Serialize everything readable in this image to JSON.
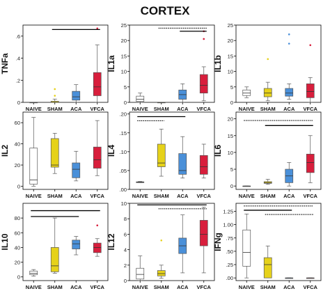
{
  "figure_title": "CORTEX",
  "chart_data": [
    {
      "type": "boxplot",
      "ylabel": "TNFa",
      "categories": [
        "NAIVE",
        "SHAM",
        "ACA",
        "VFCA"
      ],
      "ylim": [
        0,
        0.7
      ],
      "yticks": [
        0,
        0.2,
        0.4,
        0.6
      ],
      "ytick_labels": [
        "0",
        ".2",
        ".4",
        ".6"
      ],
      "colors": [
        "#ffffff",
        "#e6d21a",
        "#4a90d9",
        "#d81e3c"
      ],
      "boxes": [
        {
          "min": 0,
          "q1": 0,
          "median": 0,
          "q3": 0,
          "max": 0,
          "outliers": []
        },
        {
          "min": 0,
          "q1": 0,
          "median": 0,
          "q3": 0.01,
          "max": 0.03,
          "outliers": [
            0.06,
            0.12
          ]
        },
        {
          "min": 0,
          "q1": 0.02,
          "median": 0.05,
          "q3": 0.1,
          "max": 0.16,
          "outliers": []
        },
        {
          "min": 0,
          "q1": 0.06,
          "median": 0.14,
          "q3": 0.27,
          "max": 0.52,
          "outliers": [
            0.67
          ]
        }
      ],
      "significance_bars": [
        {
          "from": 1,
          "to": 3,
          "y": 0.66,
          "style": "solid"
        }
      ]
    },
    {
      "type": "boxplot",
      "ylabel": "IL1a",
      "categories": [
        "NAIVE",
        "SHAM",
        "ACA",
        "VFCA"
      ],
      "ylim": [
        0,
        25
      ],
      "yticks": [
        0,
        5,
        10,
        15,
        20,
        25
      ],
      "ytick_labels": [
        "0",
        "5",
        "10",
        "15",
        "20",
        "25"
      ],
      "colors": [
        "#ffffff",
        "#e6d21a",
        "#4a90d9",
        "#d81e3c"
      ],
      "boxes": [
        {
          "min": 0,
          "q1": 0.3,
          "median": 1.0,
          "q3": 2.0,
          "max": 3.0,
          "outliers": []
        },
        {
          "min": 0,
          "q1": 0,
          "median": 0,
          "q3": 0,
          "max": 0,
          "outliers": []
        },
        {
          "min": 0,
          "q1": 1.0,
          "median": 2.5,
          "q3": 4.0,
          "max": 6.0,
          "outliers": []
        },
        {
          "min": 0.5,
          "q1": 3.0,
          "median": 5.5,
          "q3": 9.0,
          "max": 11.5,
          "outliers": [
            20.5,
            23.0
          ]
        }
      ],
      "significance_bars": [
        {
          "from": 1,
          "to": 3,
          "y": 24.0,
          "style": "dotted"
        },
        {
          "from": 2,
          "to": 3,
          "y": 23.0,
          "style": "solid"
        }
      ]
    },
    {
      "type": "boxplot",
      "ylabel": "IL1b",
      "categories": [
        "NAIVE",
        "SHAM",
        "ACA",
        "VFCA"
      ],
      "ylim": [
        0,
        25
      ],
      "yticks": [
        0,
        5,
        10,
        15,
        20,
        25
      ],
      "ytick_labels": [
        "0",
        "5",
        "10",
        "15",
        "20",
        "25"
      ],
      "colors": [
        "#ffffff",
        "#e6d21a",
        "#4a90d9",
        "#d81e3c"
      ],
      "boxes": [
        {
          "min": 1.5,
          "q1": 2.2,
          "median": 3.0,
          "q3": 4.0,
          "max": 5.0,
          "outliers": []
        },
        {
          "min": 0.5,
          "q1": 1.8,
          "median": 3.0,
          "q3": 4.5,
          "max": 6.5,
          "outliers": [
            14.0
          ]
        },
        {
          "min": 1.0,
          "q1": 2.0,
          "median": 3.0,
          "q3": 4.5,
          "max": 6.0,
          "outliers": [
            19.0,
            22.0
          ]
        },
        {
          "min": 0,
          "q1": 1.5,
          "median": 3.5,
          "q3": 6.0,
          "max": 8.0,
          "outliers": [
            18.5
          ]
        }
      ],
      "significance_bars": []
    },
    {
      "type": "boxplot",
      "ylabel": "IL2",
      "categories": [
        "NAIVE",
        "SHAM",
        "ACA",
        "VFCA"
      ],
      "ylim": [
        -3,
        70
      ],
      "yticks": [
        0,
        20,
        40,
        60
      ],
      "ytick_labels": [
        "0",
        "20",
        "40",
        "60"
      ],
      "colors": [
        "#ffffff",
        "#e6d21a",
        "#4a90d9",
        "#d81e3c"
      ],
      "boxes": [
        {
          "min": 0,
          "q1": 2,
          "median": 6,
          "q3": 36,
          "max": 65,
          "outliers": []
        },
        {
          "min": 12,
          "q1": 18,
          "median": 20,
          "q3": 45,
          "max": 50,
          "outliers": []
        },
        {
          "min": 5,
          "q1": 8,
          "median": 16,
          "q3": 22,
          "max": 33,
          "outliers": []
        },
        {
          "min": 10,
          "q1": 17,
          "median": 25,
          "q3": 37,
          "max": 62,
          "outliers": []
        }
      ],
      "significance_bars": []
    },
    {
      "type": "boxplot",
      "ylabel": "IL4",
      "categories": [
        "NAIVE",
        "SHAM",
        "ACA",
        "VFCA"
      ],
      "ylim": [
        0,
        0.205
      ],
      "yticks": [
        0,
        0.05,
        0.1,
        0.15,
        0.2
      ],
      "ytick_labels": [
        ".00",
        ".05",
        ".10",
        ".15",
        ".20"
      ],
      "colors": [
        "#ffffff",
        "#e6d21a",
        "#4a90d9",
        "#d81e3c"
      ],
      "boxes": [
        {
          "min": 0.018,
          "q1": 0.018,
          "median": 0.019,
          "q3": 0.02,
          "max": 0.021,
          "outliers": []
        },
        {
          "min": 0.035,
          "q1": 0.06,
          "median": 0.07,
          "q3": 0.12,
          "max": 0.16,
          "outliers": []
        },
        {
          "min": 0.03,
          "q1": 0.04,
          "median": 0.05,
          "q3": 0.095,
          "max": 0.14,
          "outliers": []
        },
        {
          "min": 0.03,
          "q1": 0.04,
          "median": 0.06,
          "q3": 0.09,
          "max": 0.12,
          "outliers": []
        }
      ],
      "significance_bars": [
        {
          "from": 0,
          "to": 2,
          "y": 0.193,
          "style": "solid"
        },
        {
          "from": 0,
          "to": 1,
          "y": 0.182,
          "style": "dotted"
        }
      ]
    },
    {
      "type": "boxplot",
      "ylabel": "IL6",
      "categories": [
        "NAIVE",
        "SHAM",
        "ACA",
        "VFCA"
      ],
      "ylim": [
        -1,
        22
      ],
      "yticks": [
        0,
        5,
        10,
        15,
        20
      ],
      "ytick_labels": [
        "0",
        "5",
        "10",
        "15",
        "20"
      ],
      "colors": [
        "#ffffff",
        "#e6d21a",
        "#4a90d9",
        "#d81e3c"
      ],
      "boxes": [
        {
          "min": 0,
          "q1": 0,
          "median": 0,
          "q3": 0,
          "max": 0,
          "outliers": []
        },
        {
          "min": 0.5,
          "q1": 0.8,
          "median": 1.0,
          "q3": 1.3,
          "max": 2.0,
          "outliers": []
        },
        {
          "min": 0,
          "q1": 1.0,
          "median": 3.0,
          "q3": 5.0,
          "max": 7.0,
          "outliers": []
        },
        {
          "min": 1.0,
          "q1": 4.0,
          "median": 7.0,
          "q3": 9.5,
          "max": 15.0,
          "outliers": []
        }
      ],
      "significance_bars": [
        {
          "from": 0,
          "to": 3,
          "y": 19.5,
          "style": "dotted"
        },
        {
          "from": 1,
          "to": 3,
          "y": 18.0,
          "style": "solid"
        }
      ]
    },
    {
      "type": "boxplot",
      "ylabel": "IL10",
      "categories": [
        "NAIVE",
        "SHAM",
        "ACA",
        "VFCA"
      ],
      "ylim": [
        -5,
        100
      ],
      "yticks": [
        0,
        20,
        40,
        60,
        80
      ],
      "ytick_labels": [
        "0",
        "20",
        "40",
        "60",
        "80"
      ],
      "colors": [
        "#ffffff",
        "#e6d21a",
        "#4a90d9",
        "#d81e3c"
      ],
      "boxes": [
        {
          "min": 1,
          "q1": 3,
          "median": 5,
          "q3": 8,
          "max": 10,
          "outliers": []
        },
        {
          "min": 5,
          "q1": 7,
          "median": 15,
          "q3": 40,
          "max": 80,
          "outliers": []
        },
        {
          "min": 30,
          "q1": 38,
          "median": 45,
          "q3": 50,
          "max": 55,
          "outliers": []
        },
        {
          "min": 28,
          "q1": 33,
          "median": 40,
          "q3": 46,
          "max": 52,
          "outliers": [
            70
          ]
        }
      ],
      "significance_bars": [
        {
          "from": 0,
          "to": 3,
          "y": 90,
          "style": "solid"
        },
        {
          "from": 0,
          "to": 2,
          "y": 82,
          "style": "solid"
        }
      ]
    },
    {
      "type": "boxplot",
      "ylabel": "IL12",
      "categories": [
        "NAIVE",
        "SHAM",
        "ACA",
        "VFCA"
      ],
      "ylim": [
        0,
        10
      ],
      "yticks": [
        0,
        2,
        4,
        6,
        8,
        10
      ],
      "ytick_labels": [
        "0",
        "2",
        "4",
        "6",
        "8",
        "10"
      ],
      "colors": [
        "#ffffff",
        "#e6d21a",
        "#4a90d9",
        "#d81e3c"
      ],
      "boxes": [
        {
          "min": 0,
          "q1": 0.2,
          "median": 0.8,
          "q3": 1.6,
          "max": 3.2,
          "outliers": []
        },
        {
          "min": 0.3,
          "q1": 0.6,
          "median": 0.9,
          "q3": 1.3,
          "max": 2.0,
          "outliers": [
            5.2
          ]
        },
        {
          "min": 1.0,
          "q1": 3.5,
          "median": 4.5,
          "q3": 5.5,
          "max": 8.5,
          "outliers": []
        },
        {
          "min": 1.0,
          "q1": 4.5,
          "median": 6.0,
          "q3": 7.8,
          "max": 9.5,
          "outliers": []
        }
      ],
      "significance_bars": [
        {
          "from": 0,
          "to": 3,
          "y": 9.8,
          "style": "solid"
        },
        {
          "from": 1,
          "to": 3,
          "y": 9.3,
          "style": "dotted"
        }
      ]
    },
    {
      "type": "boxplot",
      "ylabel": "IFNg",
      "categories": [
        "NAIVE",
        "SHAM",
        "ACA",
        "VFCA"
      ],
      "ylim": [
        -0.05,
        1.4
      ],
      "yticks": [
        0,
        0.25,
        0.5,
        0.75,
        1.0,
        1.25
      ],
      "ytick_labels": [
        ".00",
        ".25",
        ".50",
        ".75",
        "1.00",
        "1.25"
      ],
      "colors": [
        "#ffffff",
        "#e6d21a",
        "#4a90d9",
        "#d81e3c"
      ],
      "boxes": [
        {
          "min": 0,
          "q1": 0.22,
          "median": 0.48,
          "q3": 0.9,
          "max": 1.2,
          "outliers": []
        },
        {
          "min": 0,
          "q1": 0,
          "median": 0.25,
          "q3": 0.38,
          "max": 0.6,
          "outliers": []
        },
        {
          "min": 0,
          "q1": 0,
          "median": 0,
          "q3": 0,
          "max": 0,
          "outliers": []
        },
        {
          "min": 0,
          "q1": 0,
          "median": 0,
          "q3": 0,
          "max": 0,
          "outliers": []
        }
      ],
      "significance_bars": [
        {
          "from": 0,
          "to": 3,
          "y": 1.35,
          "style": "dotted"
        },
        {
          "from": 0,
          "to": 2,
          "y": 1.27,
          "style": "solid"
        },
        {
          "from": 1,
          "to": 3,
          "y": 1.19,
          "style": "dotted"
        }
      ]
    }
  ]
}
